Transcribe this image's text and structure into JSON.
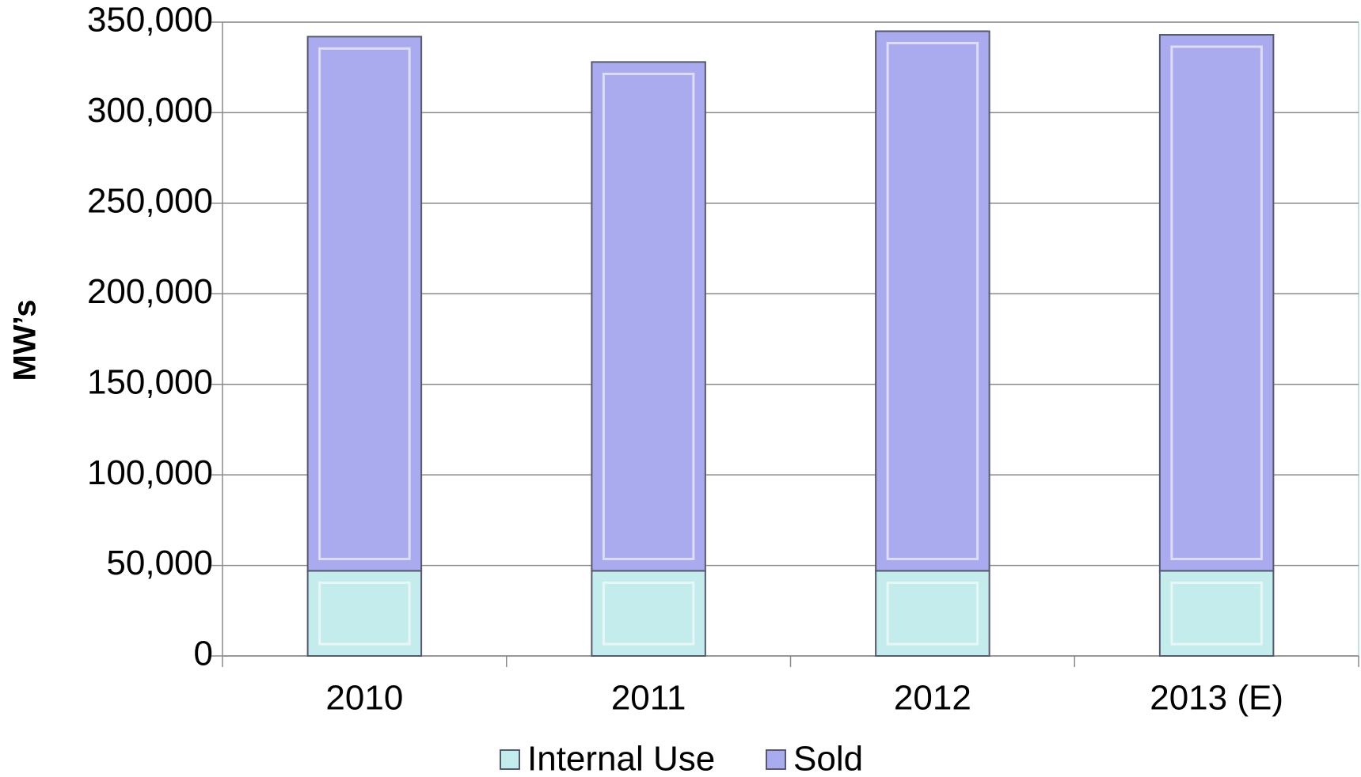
{
  "chart_data": {
    "type": "bar",
    "stacked": true,
    "y_label": "MW’s",
    "categories": [
      "2010",
      "2011",
      "2012",
      "2013 (E)"
    ],
    "series": [
      {
        "name": "Internal Use",
        "color": "#c4ecec",
        "values": [
          47000,
          47000,
          47000,
          47000
        ]
      },
      {
        "name": "Sold",
        "color": "#aaaaee",
        "values": [
          295000,
          281000,
          298000,
          296000
        ]
      }
    ],
    "ylim": [
      0,
      350000
    ],
    "yticks": [
      0,
      {
        "value": 50000,
        "label": "50,000"
      },
      {
        "value": 100000,
        "label": "100,000"
      },
      {
        "value": 150000,
        "label": "150,000"
      },
      {
        "value": 200000,
        "label": "200,000"
      },
      {
        "value": 250000,
        "label": "250,000"
      },
      {
        "value": 300000,
        "label": "300,000"
      },
      {
        "value": 350000,
        "label": "350,000"
      }
    ],
    "grid": true,
    "legend": "bottom"
  }
}
